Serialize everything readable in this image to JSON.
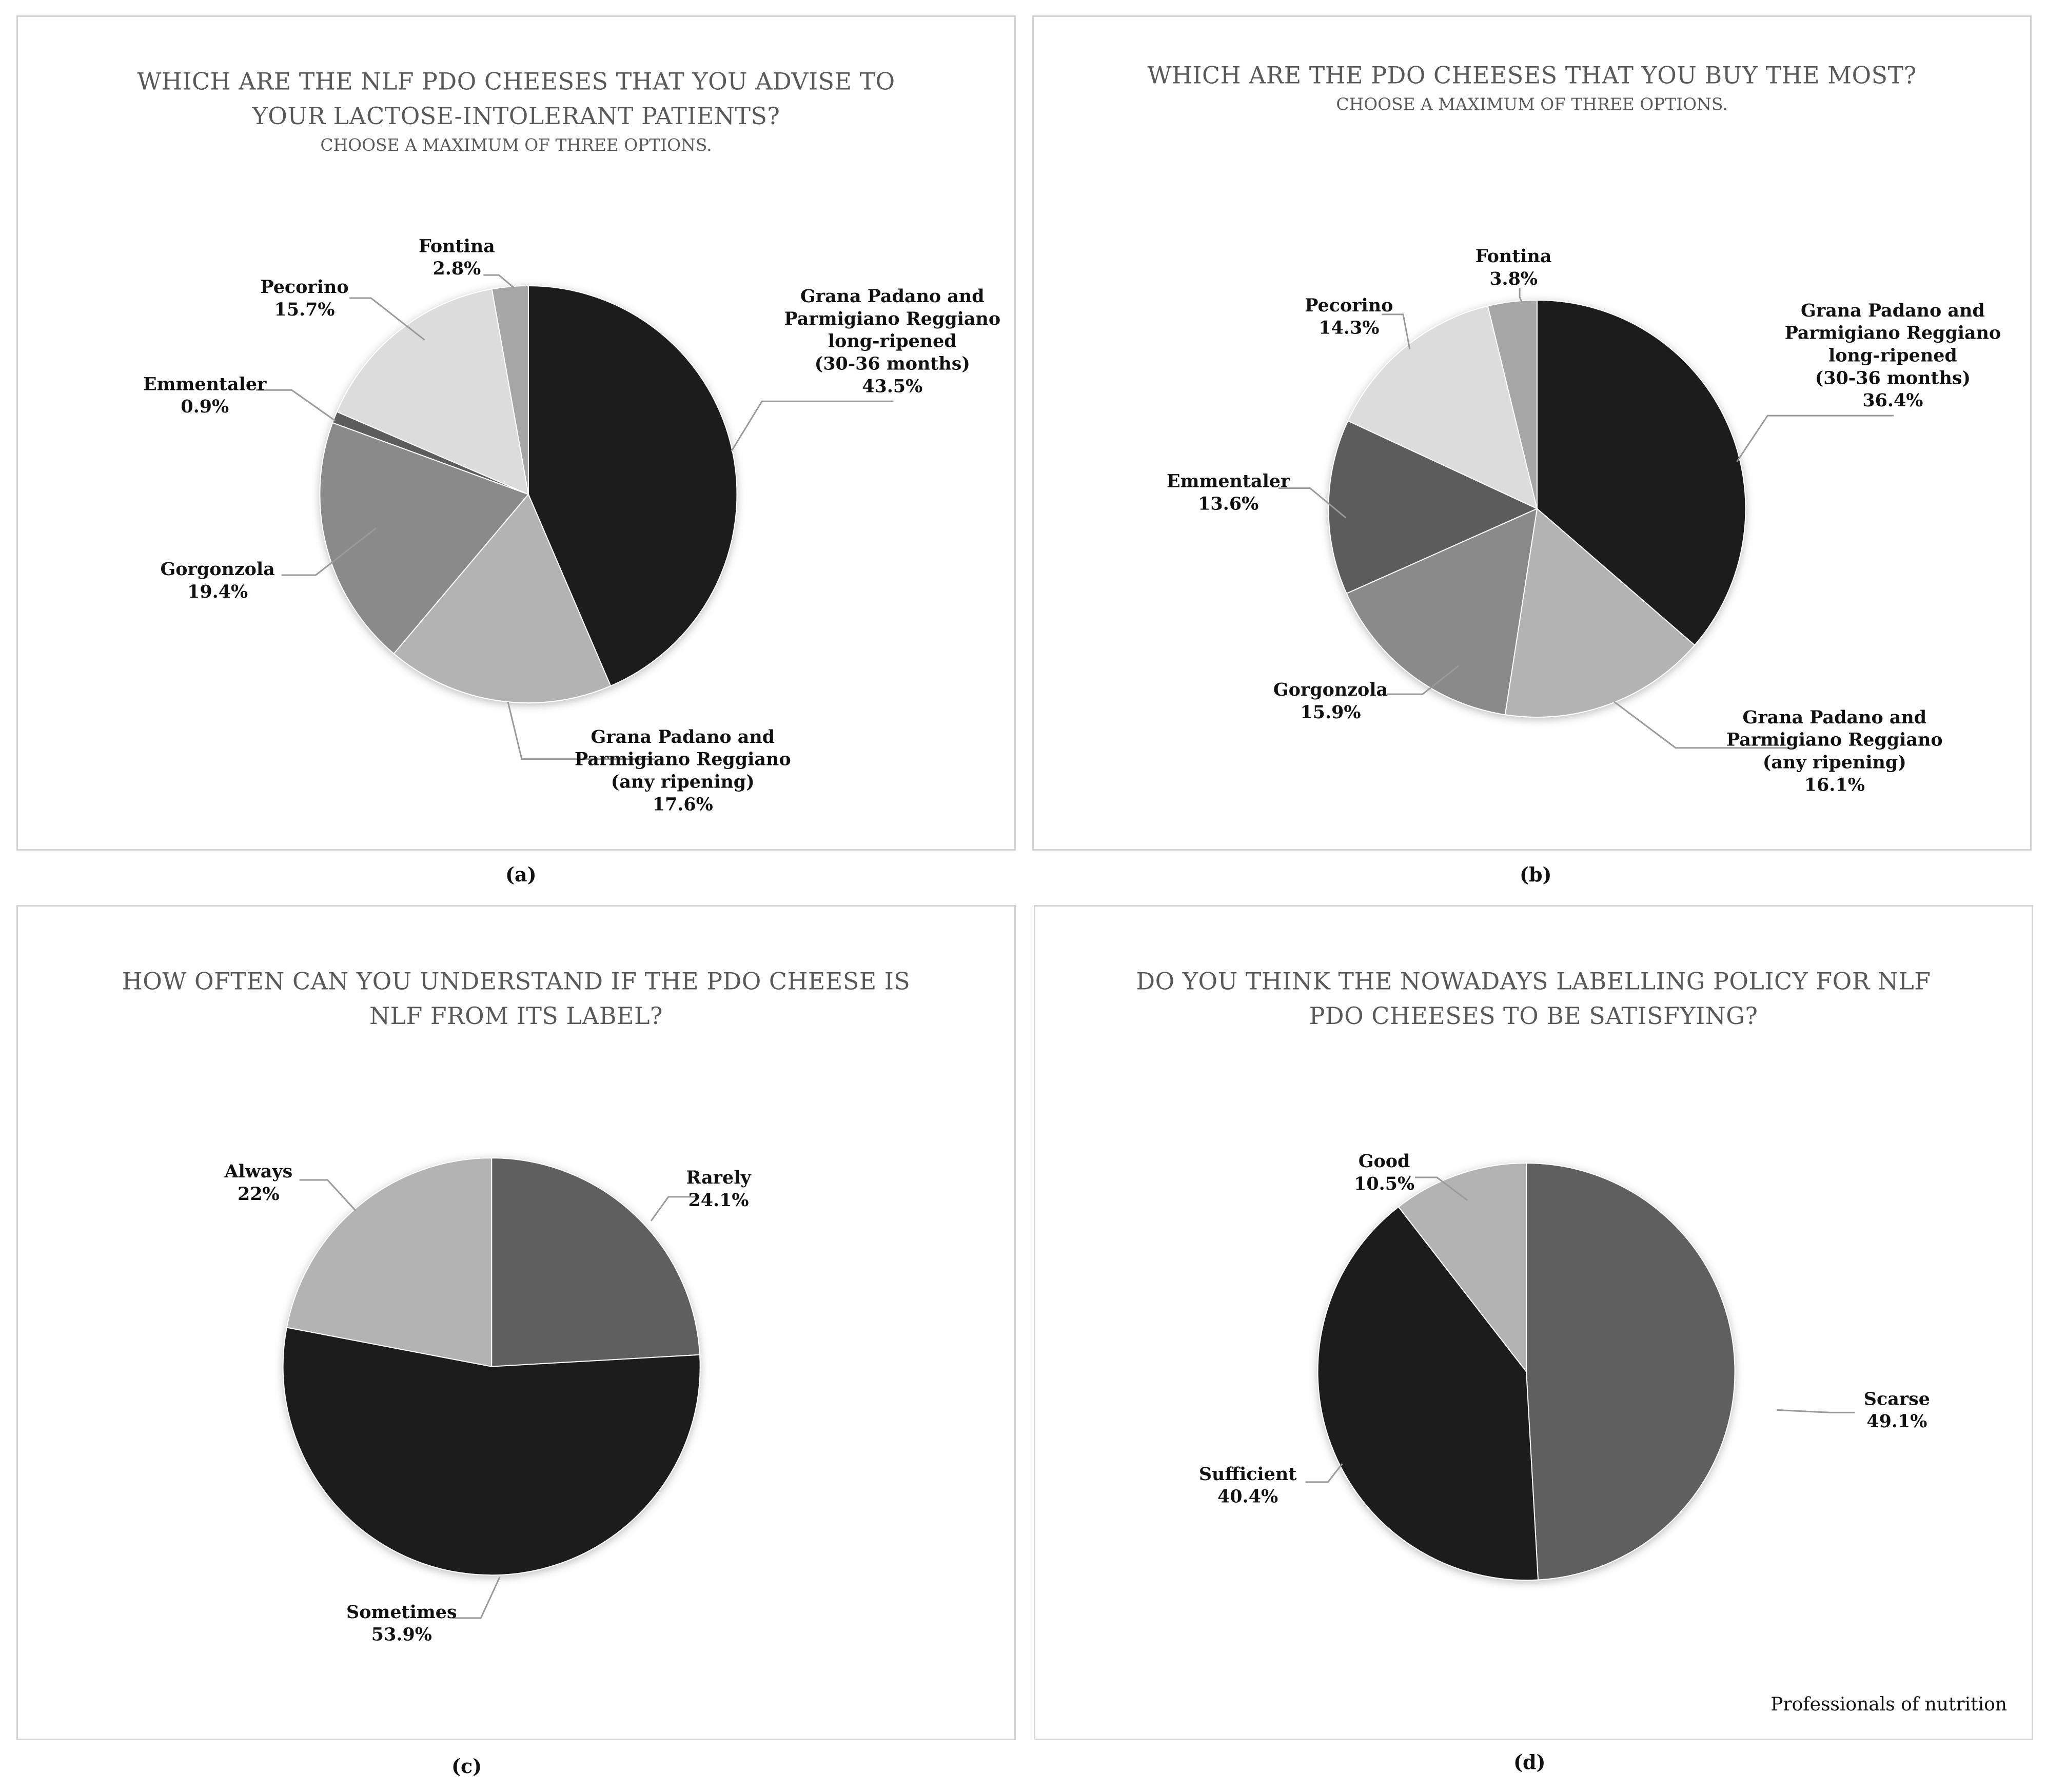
{
  "figure": {
    "panel_labels": [
      "(a)",
      "(b)",
      "(c)",
      "(d)"
    ],
    "footer": "Professionals of nutrition"
  },
  "chart_data": [
    {
      "id": "a",
      "type": "pie",
      "title_lines": [
        "WHICH ARE THE NLF PDO CHEESES THAT YOU ADVISE TO",
        "YOUR LACTOSE-INTOLERANT PATIENTS?"
      ],
      "subtitle": "CHOOSE A MAXIMUM OF THREE OPTIONS.",
      "slices": [
        {
          "label_lines": [
            "Grana Padano and",
            "Parmigiano Reggiano",
            "long-ripened",
            "(30-36 months)"
          ],
          "value": 43.5,
          "value_label": "43.5%",
          "color": "#1f1f1f"
        },
        {
          "label_lines": [
            "Grana Padano and",
            "Parmigiano Reggiano",
            "(any ripening)"
          ],
          "value": 17.6,
          "value_label": "17.6%",
          "color": "#b3b3b3"
        },
        {
          "label_lines": [
            "Gorgonzola"
          ],
          "value": 19.4,
          "value_label": "19.4%",
          "color": "#8a8a8a"
        },
        {
          "label_lines": [
            "Emmentaler"
          ],
          "value": 0.9,
          "value_label": "0.9%",
          "color": "#5c5c5c"
        },
        {
          "label_lines": [
            "Pecorino"
          ],
          "value": 15.7,
          "value_label": "15.7%",
          "color": "#dcdcdc"
        },
        {
          "label_lines": [
            "Fontina"
          ],
          "value": 2.8,
          "value_label": "2.8%",
          "color": "#a6a6a6"
        }
      ]
    },
    {
      "id": "b",
      "type": "pie",
      "title_lines": [
        "WHICH ARE THE PDO CHEESES THAT YOU BUY THE MOST?"
      ],
      "subtitle": "CHOOSE A MAXIMUM OF THREE OPTIONS.",
      "slices": [
        {
          "label_lines": [
            "Grana Padano and",
            "Parmigiano Reggiano",
            "long-ripened",
            "(30-36 months)"
          ],
          "value": 36.4,
          "value_label": "36.4%",
          "color": "#1f1f1f"
        },
        {
          "label_lines": [
            "Grana Padano and",
            "Parmigiano Reggiano",
            "(any ripening)"
          ],
          "value": 16.1,
          "value_label": "16.1%",
          "color": "#b3b3b3"
        },
        {
          "label_lines": [
            "Gorgonzola"
          ],
          "value": 15.9,
          "value_label": "15.9%",
          "color": "#8a8a8a"
        },
        {
          "label_lines": [
            "Emmentaler"
          ],
          "value": 13.6,
          "value_label": "13.6%",
          "color": "#5c5c5c"
        },
        {
          "label_lines": [
            "Pecorino"
          ],
          "value": 14.3,
          "value_label": "14.3%",
          "color": "#dcdcdc"
        },
        {
          "label_lines": [
            "Fontina"
          ],
          "value": 3.8,
          "value_label": "3.8%",
          "color": "#a6a6a6"
        }
      ]
    },
    {
      "id": "c",
      "type": "pie",
      "title_lines": [
        "HOW OFTEN CAN YOU UNDERSTAND IF THE PDO CHEESE IS",
        "NLF FROM ITS LABEL?"
      ],
      "subtitle": "",
      "slices": [
        {
          "label_lines": [
            "Rarely"
          ],
          "value": 24.1,
          "value_label": "24.1%",
          "color": "#5e5e5e"
        },
        {
          "label_lines": [
            "Sometimes"
          ],
          "value": 53.9,
          "value_label": "53.9%",
          "color": "#1f1f1f"
        },
        {
          "label_lines": [
            "Always"
          ],
          "value": 22,
          "value_label": "22%",
          "color": "#b3b3b3"
        }
      ]
    },
    {
      "id": "d",
      "type": "pie",
      "title_lines": [
        "DO YOU THINK THE NOWADAYS LABELLING POLICY FOR NLF",
        "PDO CHEESES TO BE SATISFYING?"
      ],
      "subtitle": "",
      "slices": [
        {
          "label_lines": [
            "Scarse"
          ],
          "value": 49.1,
          "value_label": "49.1%",
          "color": "#5e5e5e"
        },
        {
          "label_lines": [
            "Sufficient"
          ],
          "value": 40.4,
          "value_label": "40.4%",
          "color": "#1f1f1f"
        },
        {
          "label_lines": [
            "Good"
          ],
          "value": 10.5,
          "value_label": "10.5%",
          "color": "#b3b3b3"
        }
      ]
    }
  ]
}
